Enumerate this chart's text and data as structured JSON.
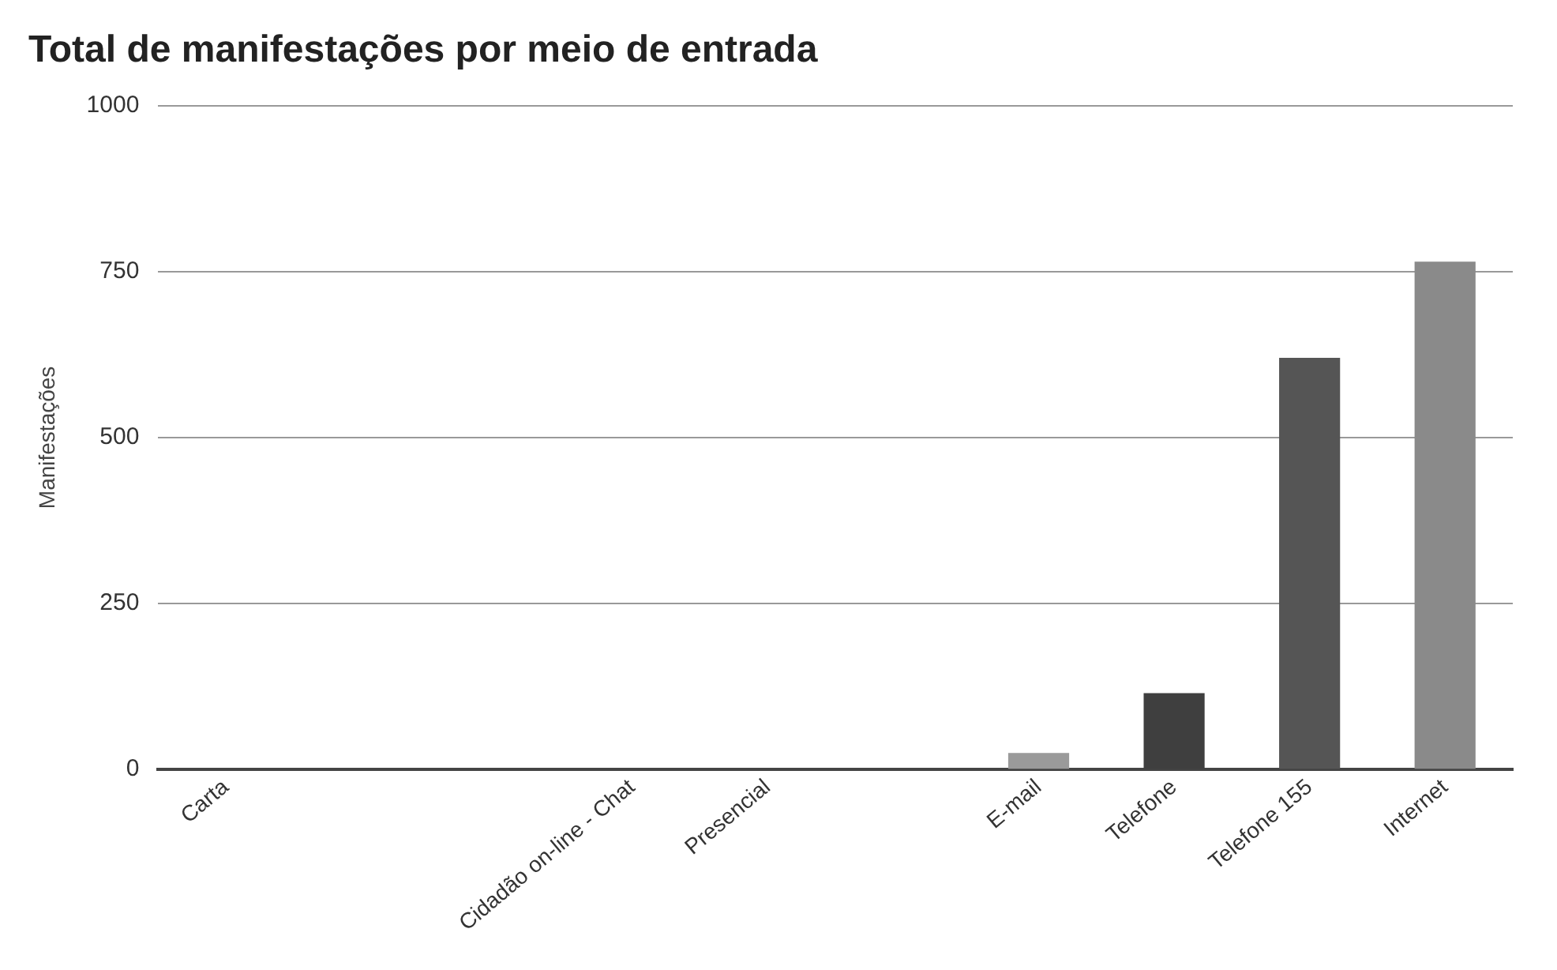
{
  "chart_data": {
    "type": "bar",
    "title": "Total de manifestações por meio de entrada",
    "ylabel": "Manifestações",
    "categories": [
      "Carta",
      null,
      null,
      "Cidadão on-line - Chat",
      "Presencial",
      null,
      "E-mail",
      "Telefone",
      "Telefone 155",
      "Internet"
    ],
    "values": [
      0,
      0,
      0,
      0,
      0,
      0,
      25,
      115,
      620,
      765
    ],
    "colors": [
      "#808080",
      "#808080",
      "#808080",
      "#808080",
      "#808080",
      "#808080",
      "#9a9a9a",
      "#3f3f3f",
      "#555555",
      "#8a8a8a"
    ],
    "ylim": [
      0,
      1000
    ],
    "yticks": [
      0,
      250,
      500,
      750,
      1000
    ],
    "grid": "y",
    "legend": false
  }
}
